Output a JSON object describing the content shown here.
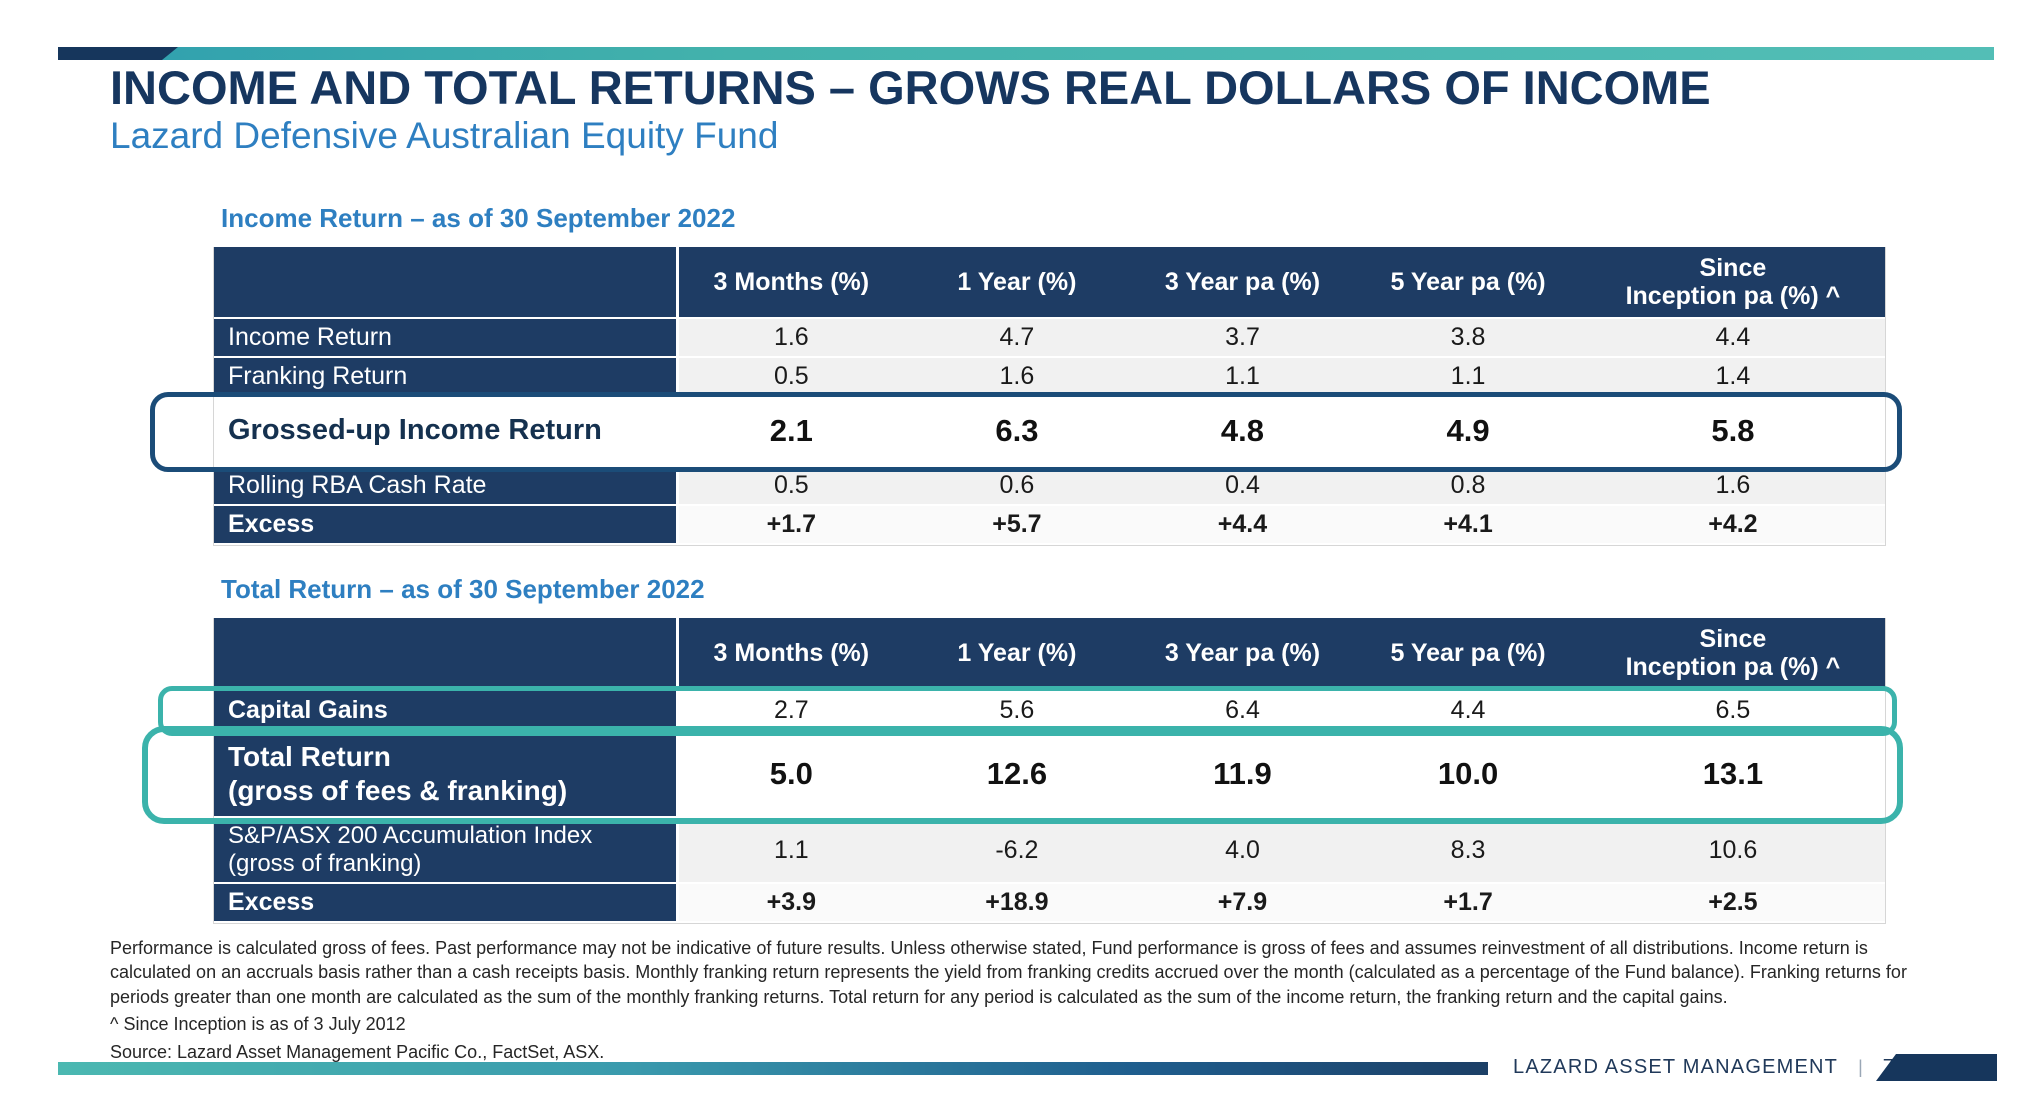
{
  "colors": {
    "navy": "#16365c",
    "header_navy": "#1e3c64",
    "accent_blue": "#2e7fc1",
    "teal": "#3bb3ab",
    "highlight_navy": "#1b4c78",
    "row_gray": "#f1f1f1"
  },
  "slide": {
    "title": "INCOME AND TOTAL RETURNS – GROWS REAL DOLLARS OF INCOME",
    "subtitle": "Lazard Defensive Australian Equity Fund"
  },
  "income_table": {
    "heading": "Income Return – as of 30 September 2022",
    "columns": [
      "3 Months (%)",
      "1 Year (%)",
      "3 Year pa (%)",
      "5 Year pa (%)",
      "Since\nInception pa (%) ^"
    ],
    "rows": [
      {
        "label": "Income Return",
        "values": [
          "1.6",
          "4.7",
          "3.7",
          "3.8",
          "4.4"
        ]
      },
      {
        "label": "Franking Return",
        "values": [
          "0.5",
          "1.6",
          "1.1",
          "1.1",
          "1.4"
        ]
      },
      {
        "label": "Grossed-up Income Return",
        "values": [
          "2.1",
          "6.3",
          "4.8",
          "4.9",
          "5.8"
        ]
      },
      {
        "label": "Rolling RBA Cash Rate",
        "values": [
          "0.5",
          "0.6",
          "0.4",
          "0.8",
          "1.6"
        ]
      },
      {
        "label": "Excess",
        "values": [
          "+1.7",
          "+5.7",
          "+4.4",
          "+4.1",
          "+4.2"
        ]
      }
    ]
  },
  "total_table": {
    "heading": "Total Return – as of 30 September 2022",
    "columns": [
      "3 Months (%)",
      "1 Year (%)",
      "3 Year pa (%)",
      "5 Year pa (%)",
      "Since\nInception pa (%) ^"
    ],
    "rows": [
      {
        "label": "Capital Gains",
        "values": [
          "2.7",
          "5.6",
          "6.4",
          "4.4",
          "6.5"
        ]
      },
      {
        "label": "Total Return\n(gross of fees & franking)",
        "values": [
          "5.0",
          "12.6",
          "11.9",
          "10.0",
          "13.1"
        ]
      },
      {
        "label": "S&P/ASX 200 Accumulation Index\n(gross of franking)",
        "values": [
          "1.1",
          "-6.2",
          "4.0",
          "8.3",
          "10.6"
        ]
      },
      {
        "label": "Excess",
        "values": [
          "+3.9",
          "+18.9",
          "+7.9",
          "+1.7",
          "+2.5"
        ]
      }
    ]
  },
  "footnotes": {
    "performance": "Performance is calculated gross of fees. Past performance may not be indicative of future results. Unless otherwise stated, Fund performance is gross of fees and assumes reinvestment of all distributions. Income return is calculated on an accruals basis rather than a cash receipts basis. Monthly franking return represents the yield from franking credits accrued over the month (calculated as a percentage of the Fund balance). Franking returns for periods greater than one month are calculated as the sum of the monthly franking returns. Total return for any period is calculated as the sum of the income return, the franking return and the capital gains.",
    "inception": "^ Since Inception is as of 3 July 2012",
    "source": "Source:  Lazard Asset Management Pacific Co., FactSet, ASX."
  },
  "footer": {
    "brand": "LAZARD ASSET MANAGEMENT",
    "separator": "|",
    "page": "7"
  }
}
